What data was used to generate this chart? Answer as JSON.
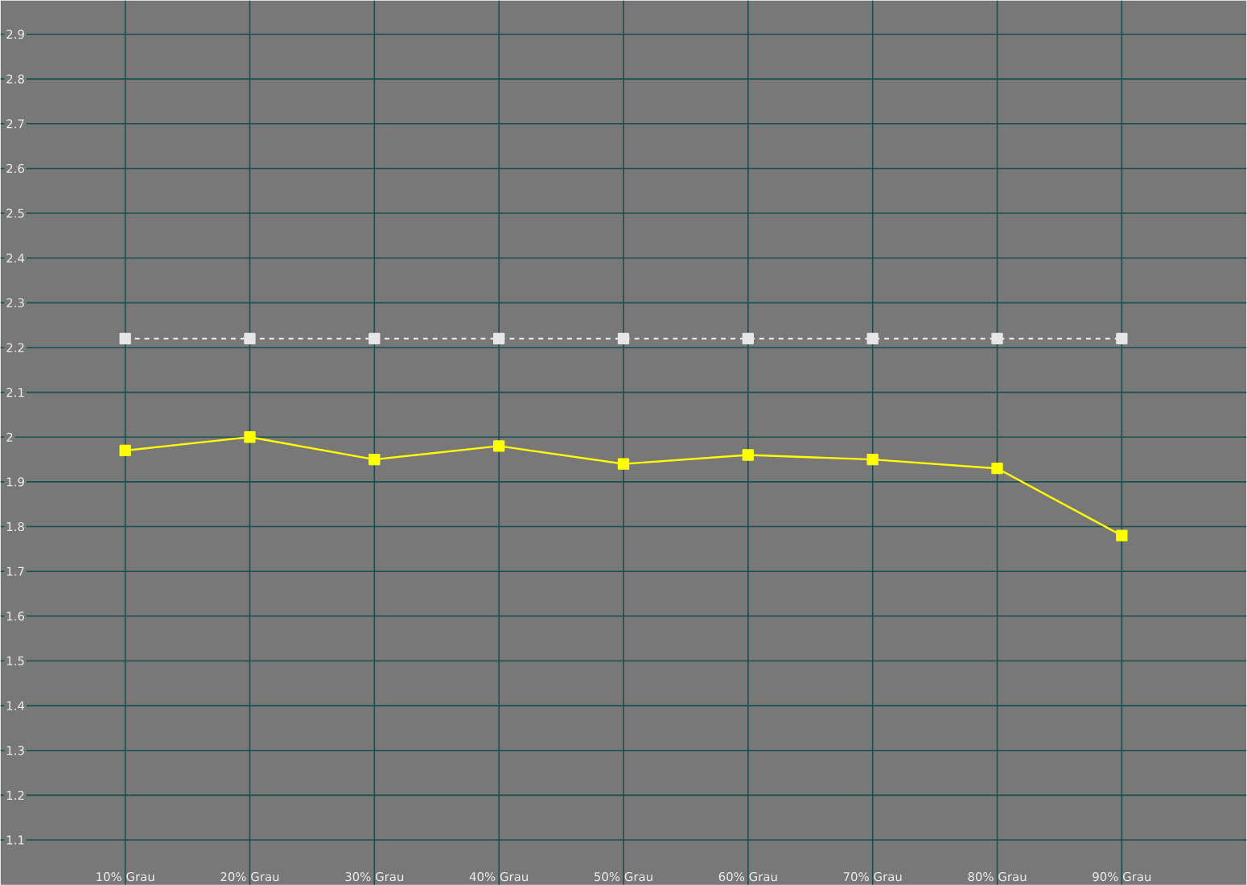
{
  "chart_data": {
    "type": "line",
    "x": [
      10,
      20,
      30,
      40,
      50,
      60,
      70,
      80,
      90
    ],
    "series": [
      {
        "color": "#e6e6e6",
        "line_style": "dashed",
        "values": [
          2.22,
          2.22,
          2.22,
          2.22,
          2.22,
          2.22,
          2.22,
          2.22,
          2.22
        ]
      },
      {
        "color": "#ffff00",
        "line_style": "solid",
        "values": [
          1.97,
          2.0,
          1.95,
          1.98,
          1.94,
          1.96,
          1.95,
          1.93,
          1.78
        ]
      }
    ],
    "marker": "square",
    "xlim": [
      0,
      100
    ],
    "xticks": [
      {
        "value": 10,
        "label": "10% Grau"
      },
      {
        "value": 20,
        "label": "20% Grau"
      },
      {
        "value": 30,
        "label": "30% Grau"
      },
      {
        "value": 40,
        "label": "40% Grau"
      },
      {
        "value": 50,
        "label": "50% Grau"
      },
      {
        "value": 60,
        "label": "60% Grau"
      },
      {
        "value": 70,
        "label": "70% Grau"
      },
      {
        "value": 80,
        "label": "80% Grau"
      },
      {
        "value": 90,
        "label": "90% Grau"
      }
    ],
    "ylim": [
      1.0,
      2.975
    ],
    "yticks": [
      1.1,
      1.2,
      1.3,
      1.4,
      1.5,
      1.6,
      1.7,
      1.8,
      1.9,
      2,
      2.1,
      2.2,
      2.3,
      2.4,
      2.5,
      2.6,
      2.7,
      2.8,
      2.9
    ],
    "grid": true
  }
}
